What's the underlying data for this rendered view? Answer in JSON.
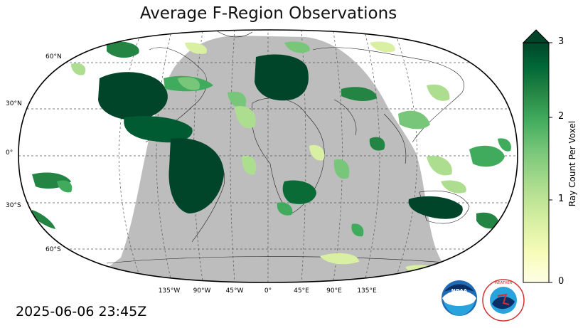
{
  "title": "Average F-Region Observations",
  "timestamp": "2025-06-06 23:45Z",
  "map": {
    "projection": "Robinson",
    "night_shade_color": "#bdbdbd",
    "lat_labels": [
      "60°N",
      "30°N",
      "0°",
      "30°S",
      "60°S"
    ],
    "lon_labels": [
      "135°W",
      "90°W",
      "45°W",
      "0°",
      "45°E",
      "90°E",
      "135°E"
    ]
  },
  "colorbar": {
    "label": "Ray Count Per Voxel",
    "ticks": [
      "0",
      "1",
      "2",
      "3"
    ],
    "min": 0,
    "max": 3,
    "extend": "max",
    "colormap": "YlGn",
    "colors": [
      "#ffffe5",
      "#f7fcb9",
      "#d9f0a3",
      "#addd8e",
      "#78c679",
      "#41ab5d",
      "#238443",
      "#006837",
      "#004529"
    ]
  },
  "logos": {
    "noaa": "NOAA",
    "nws": "NATIONAL WEATHER SERVICE"
  }
}
